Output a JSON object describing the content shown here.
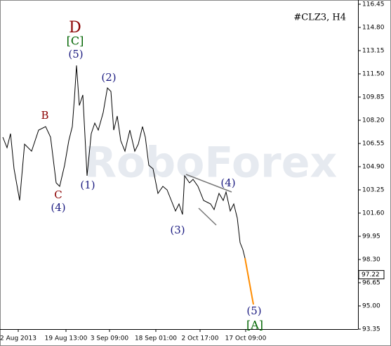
{
  "chart_data": {
    "type": "line",
    "title": "#CLZ3, H4",
    "watermark": "RoboForex",
    "x": [
      4,
      10,
      15,
      20,
      28,
      35,
      45,
      55,
      65,
      72,
      80,
      85,
      92,
      98,
      103,
      106,
      109,
      113,
      118,
      124,
      130,
      135,
      140,
      147,
      153,
      158,
      162,
      167,
      172,
      178,
      185,
      192,
      197,
      203,
      207,
      212,
      218,
      225,
      232,
      238,
      244,
      250,
      255,
      260,
      263,
      270,
      275,
      282,
      290,
      300,
      305,
      312,
      318,
      322,
      328,
      333,
      338,
      342,
      346,
      349
    ],
    "series": [
      {
        "name": "CLZ3",
        "color": "#000000",
        "x": [
          4,
          10,
          15,
          20,
          28,
          35,
          45,
          55,
          65,
          72,
          80,
          85,
          92,
          98,
          103,
          106,
          109,
          113,
          118,
          124,
          130,
          135,
          140,
          147,
          153,
          158,
          162,
          167,
          172,
          178,
          185,
          192,
          197,
          203,
          207,
          212,
          218,
          225,
          232,
          238,
          244,
          250,
          255,
          260,
          263,
          270,
          275,
          282,
          290,
          300,
          305,
          312,
          318,
          322,
          328,
          333,
          338,
          342,
          346,
          349
        ],
        "values": [
          107.0,
          106.25,
          107.25,
          104.75,
          102.5,
          106.5,
          106.0,
          107.5,
          107.75,
          107.0,
          103.75,
          103.5,
          105.0,
          106.75,
          107.75,
          109.75,
          112.1,
          109.25,
          110.0,
          104.25,
          107.25,
          108.0,
          107.5,
          108.75,
          110.5,
          110.25,
          107.5,
          108.5,
          106.75,
          106.0,
          107.5,
          106.0,
          106.5,
          107.75,
          107.0,
          105.0,
          104.75,
          103.0,
          103.5,
          103.25,
          102.5,
          101.75,
          102.25,
          101.5,
          104.25,
          103.75,
          104.0,
          103.5,
          102.5,
          102.25,
          101.85,
          103.0,
          102.5,
          103.1,
          101.75,
          102.25,
          101.25,
          99.5,
          99.0,
          98.4
        ]
      },
      {
        "name": "Forecast",
        "color": "#ff8c00",
        "x": [
          349,
          361
        ],
        "values": [
          98.4,
          95.1
        ]
      }
    ],
    "last_price": 97.22,
    "annotations": [
      {
        "text": "D",
        "color": "#8b0000"
      },
      {
        "text": "[C]",
        "color": "#006400"
      },
      {
        "text": "(5)",
        "color": "#1a1a80"
      },
      {
        "text": "(2)",
        "color": "#1a1a80"
      },
      {
        "text": "B",
        "color": "#8b0000"
      },
      {
        "text": "(1)",
        "color": "#1a1a80"
      },
      {
        "text": "C",
        "color": "#8b0000"
      },
      {
        "text": "(4)",
        "color": "#1a1a80"
      },
      {
        "text": "(3)",
        "color": "#1a1a80"
      },
      {
        "text": "(4)",
        "color": "#1a1a80"
      },
      {
        "text": "(5)",
        "color": "#1a1a80"
      },
      {
        "text": "[A]",
        "color": "#006400"
      }
    ],
    "xlim": [
      0,
      510
    ],
    "xticks": [
      {
        "value": 26,
        "label": "2 Aug 2013"
      },
      {
        "value": 94,
        "label": "19 Aug 13:00"
      },
      {
        "value": 156,
        "label": "3 Sep 09:00"
      },
      {
        "value": 222,
        "label": "18 Sep 01:00"
      },
      {
        "value": 285,
        "label": "2 Oct 17:00"
      },
      {
        "value": 350,
        "label": "17 Oct 09:00"
      }
    ],
    "ylim": [
      93.35,
      116.45
    ],
    "yticks": [
      116.45,
      {
        "value": 114.8,
        "label": "114.80"
      },
      113.15,
      {
        "value": 111.5,
        "label": "111.50"
      },
      109.85,
      {
        "value": 108.2,
        "label": "108.20"
      },
      106.55,
      {
        "value": 104.9,
        "label": "104.90"
      },
      103.25,
      {
        "value": 101.6,
        "label": "101.60"
      },
      99.95,
      {
        "value": 98.3,
        "label": "98.30"
      },
      96.65,
      {
        "value": 95.0,
        "label": "95.00"
      },
      93.35
    ]
  }
}
